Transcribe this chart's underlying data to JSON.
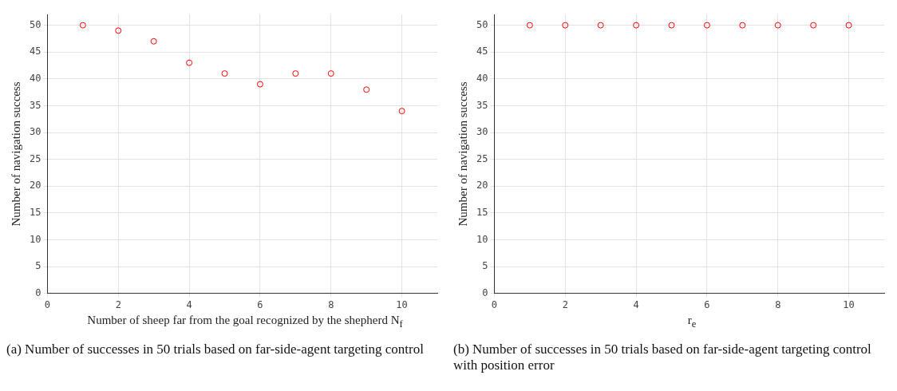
{
  "chart_data": [
    {
      "type": "scatter",
      "xlabel": "Number of sheep far from the goal recognized by the shepherd N$_{f}$",
      "ylabel": "Number of navigation success",
      "x": [
        1,
        2,
        3,
        4,
        5,
        6,
        7,
        8,
        9,
        10
      ],
      "series": [
        {
          "color": "#ff0000",
          "values": [
            50,
            49,
            47,
            43,
            41,
            39,
            41,
            41,
            38,
            34
          ]
        }
      ],
      "xlim": [
        0,
        11
      ],
      "xticks": [
        0,
        2,
        4,
        6,
        8,
        10
      ],
      "ylim": [
        0,
        52
      ],
      "yticks": [
        0,
        5,
        10,
        15,
        20,
        25,
        30,
        35,
        40,
        45,
        50
      ],
      "grid": true,
      "marker": "circle",
      "legend": false,
      "annotations": [
        "(a) Number of successes in 50 trials based on far-side-agent targeting control"
      ]
    },
    {
      "type": "scatter",
      "xlabel": "r$_{e}$",
      "ylabel": "Number of navigation success",
      "x": [
        1,
        2,
        3,
        4,
        5,
        6,
        7,
        8,
        9,
        10
      ],
      "series": [
        {
          "color": "#ff0000",
          "values": [
            50,
            50,
            50,
            50,
            50,
            50,
            50,
            50,
            50,
            50
          ]
        }
      ],
      "xlim": [
        0,
        11
      ],
      "xticks": [
        0,
        2,
        4,
        6,
        8,
        10
      ],
      "ylim": [
        0,
        52
      ],
      "yticks": [
        0,
        5,
        10,
        15,
        20,
        25,
        30,
        35,
        40,
        45,
        50
      ],
      "grid": true,
      "marker": "circle",
      "legend": false,
      "annotations": [
        "(b) Number of successes in 50 trials based on far-side-agent targeting control with position error"
      ]
    }
  ]
}
